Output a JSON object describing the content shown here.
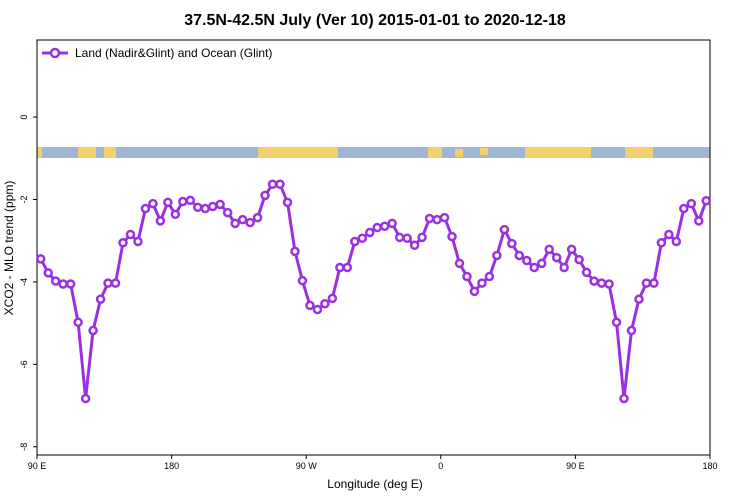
{
  "chart_data": {
    "type": "line",
    "title": "37.5N-42.5N July (Ver 10)   2015-01-01 to 2020-12-18",
    "x_label": "Longitude (deg E)",
    "y_label": "XCO2 - MLO trend (ppm)",
    "xlim": [
      90,
      540
    ],
    "ylim": [
      -8.2,
      1.87
    ],
    "xticks": [
      {
        "value": 90,
        "label": "90 E"
      },
      180,
      {
        "value": 270,
        "label": "90 W"
      },
      {
        "value": 360,
        "label": "0"
      },
      {
        "value": 450,
        "label": "90 E"
      },
      {
        "value": 540,
        "label": "180"
      }
    ],
    "yticks": [
      0,
      -2,
      -4,
      -6,
      -8
    ],
    "legend": "top-left",
    "x": [
      92.5,
      97.5,
      102.5,
      107.5,
      112.5,
      117.5,
      122.5,
      127.5,
      132.5,
      137.5,
      142.5,
      147.5,
      152.5,
      157.5,
      162.5,
      167.5,
      172.5,
      177.5,
      182.5,
      187.5,
      192.5,
      197.5,
      202.5,
      207.5,
      212.5,
      217.5,
      222.5,
      227.5,
      232.5,
      237.5,
      242.5,
      247.5,
      252.5,
      257.5,
      262.5,
      267.5,
      272.5,
      277.5,
      282.5,
      287.5,
      292.5,
      297.5,
      302.5,
      307.5,
      312.5,
      317.5,
      322.5,
      327.5,
      332.5,
      337.5,
      342.5,
      347.5,
      352.5,
      357.5,
      362.5,
      367.5,
      372.5,
      377.5,
      382.5,
      387.5,
      392.5,
      397.5,
      402.5,
      407.5,
      412.5,
      417.5,
      422.5,
      427.5,
      432.5,
      437.5,
      442.5,
      447.5,
      452.5,
      457.5,
      462.5,
      467.5,
      472.5,
      477.5,
      482.5,
      487.5,
      492.5,
      497.5,
      502.5,
      507.5,
      512.5,
      517.5,
      522.5,
      527.5,
      532.5,
      537.5
    ],
    "series": [
      {
        "name": "Land (Nadir&Glint) and Ocean (Glint)",
        "color": "#9b30e0",
        "values": [
          -3.44,
          -3.78,
          -3.98,
          -4.05,
          -4.05,
          -4.98,
          -6.83,
          -5.18,
          -4.42,
          -4.03,
          -4.03,
          -3.05,
          -2.85,
          -3.02,
          -2.22,
          -2.1,
          -2.52,
          -2.07,
          -2.36,
          -2.05,
          -2.02,
          -2.19,
          -2.22,
          -2.17,
          -2.12,
          -2.32,
          -2.58,
          -2.49,
          -2.56,
          -2.44,
          -1.9,
          -1.63,
          -1.63,
          -2.07,
          -3.26,
          -3.97,
          -4.57,
          -4.67,
          -4.53,
          -4.4,
          -3.65,
          -3.65,
          -3.02,
          -2.94,
          -2.8,
          -2.68,
          -2.65,
          -2.58,
          -2.92,
          -2.94,
          -3.11,
          -2.92,
          -2.46,
          -2.49,
          -2.44,
          -2.9,
          -3.55,
          -3.87,
          -4.23,
          -4.03,
          -3.87,
          -3.36,
          -2.73,
          -3.07,
          -3.36,
          -3.48,
          -3.65,
          -3.55,
          -3.21,
          -3.41,
          -3.65,
          -3.21,
          -3.46,
          -3.77,
          -3.98,
          -4.03,
          -4.05,
          -4.98,
          -6.83,
          -5.18,
          -4.42,
          -4.03,
          -4.03,
          -3.05,
          -2.85,
          -3.02,
          -2.22,
          -2.1,
          -2.52,
          -2.03
        ]
      }
    ]
  }
}
